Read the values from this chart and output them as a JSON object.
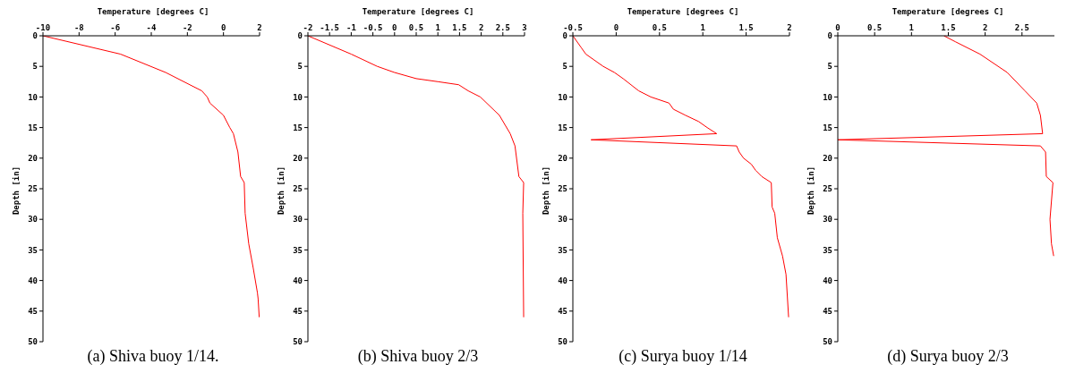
{
  "chart_data": [
    {
      "type": "line",
      "title": "(a) Shiva buoy 1/14.",
      "xlabel": "Temperature [degrees C]",
      "ylabel": "Depth [in]",
      "color": "#ff0000",
      "marker": "none",
      "line_style": "solid",
      "grid": false,
      "x": [
        -10,
        -5.7,
        -3.2,
        -1.2,
        -0.9,
        -0.75,
        0,
        0.35,
        0.55,
        0.8,
        0.95,
        1.15,
        1.2,
        1.4,
        1.65,
        1.88,
        1.92,
        1.98
      ],
      "values": [
        0,
        3,
        6,
        9,
        10,
        11,
        13,
        15,
        16,
        19,
        23,
        24,
        29,
        34,
        38,
        42,
        43,
        46
      ],
      "xlim": [
        -10,
        2
      ],
      "xticks": [
        -10,
        -8,
        -6,
        -4,
        -2,
        0,
        2
      ],
      "ylim": [
        50,
        0
      ],
      "yticks": [
        0,
        5,
        10,
        15,
        20,
        25,
        30,
        35,
        40,
        45,
        50
      ]
    },
    {
      "type": "line",
      "title": "(b) Shiva buoy 2/3",
      "xlabel": "Temperature [degrees C]",
      "ylabel": "Depth [in]",
      "color": "#ff0000",
      "marker": "none",
      "line_style": "solid",
      "grid": false,
      "x": [
        -2,
        -1,
        -0.4,
        0,
        0.5,
        1,
        1.48,
        1.7,
        1.98,
        2.42,
        2.67,
        2.78,
        2.87,
        2.98,
        2.96,
        2.98
      ],
      "values": [
        0,
        3,
        5,
        6,
        7,
        7.5,
        8,
        9,
        10,
        13,
        16,
        18,
        23,
        24,
        29,
        46
      ],
      "xlim": [
        -2,
        3
      ],
      "xticks": [
        -2,
        -1.5,
        -1,
        -0.5,
        0,
        0.5,
        1,
        1.5,
        2,
        2.5,
        3
      ],
      "ylim": [
        50,
        0
      ],
      "yticks": [
        0,
        5,
        10,
        15,
        20,
        25,
        30,
        35,
        40,
        45,
        50
      ]
    },
    {
      "type": "line",
      "title": "(c) Surya buoy 1/14",
      "xlabel": "Temperature [degrees C]",
      "ylabel": "Depth [in]",
      "color": "#ff0000",
      "marker": "none",
      "line_style": "solid",
      "grid": false,
      "x": [
        -0.5,
        -0.4,
        -0.35,
        -0.15,
        -0.02,
        0.08,
        0.26,
        0.4,
        0.61,
        0.66,
        0.8,
        0.95,
        1.05,
        1.16,
        -0.29,
        1.39,
        1.42,
        1.47,
        1.56,
        1.61,
        1.68,
        1.79,
        1.8,
        1.83,
        1.86,
        1.92,
        1.96,
        1.99
      ],
      "values": [
        0,
        2,
        3,
        5,
        6,
        7,
        9,
        10,
        11,
        12,
        13,
        14,
        15,
        16,
        17,
        18,
        19,
        20,
        21,
        22,
        23,
        24,
        28,
        29,
        33,
        36,
        39,
        46
      ],
      "xlim": [
        -0.5,
        2
      ],
      "xticks": [
        -0.5,
        0,
        0.5,
        1,
        1.5,
        2
      ],
      "ylim": [
        50,
        0
      ],
      "yticks": [
        0,
        5,
        10,
        15,
        20,
        25,
        30,
        35,
        40,
        45,
        50
      ]
    },
    {
      "type": "line",
      "title": "(d) Surya buoy 2/3",
      "xlabel": "Temperature [degrees C]",
      "ylabel": "Depth [in]",
      "color": "#ff0000",
      "marker": "none",
      "line_style": "solid",
      "grid": false,
      "x": [
        1.44,
        1.6,
        1.93,
        2.3,
        2.54,
        2.7,
        2.75,
        2.78,
        0,
        2.75,
        2.82,
        2.83,
        2.92,
        2.88,
        2.9,
        2.93
      ],
      "values": [
        0,
        1,
        3,
        6,
        9,
        11,
        13,
        16,
        17,
        18,
        19,
        23,
        24,
        30,
        34,
        36
      ],
      "xlim": [
        0,
        2.94
      ],
      "xticks": [
        0,
        0.5,
        1,
        1.5,
        2,
        2.5
      ],
      "ylim": [
        50,
        0
      ],
      "yticks": [
        0,
        5,
        10,
        15,
        20,
        25,
        30,
        35,
        40,
        45,
        50
      ]
    }
  ]
}
